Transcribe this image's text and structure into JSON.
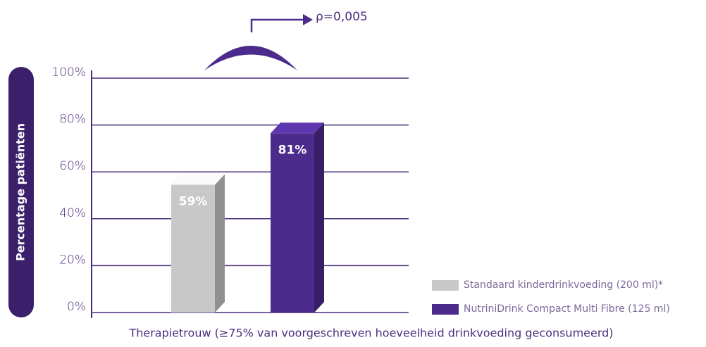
{
  "chart_data": {
    "type": "bar",
    "y_label": "Percentage patiënten",
    "x_label": "Therapietrouw (≥75% van voorgeschreven hoeveelheid drinkvoeding geconsumeerd)",
    "annotation": "ρ=0,005",
    "series": [
      {
        "name": "Standaard kinderdrinkvoeding (200 ml)*",
        "color": "#c8c8c8",
        "values": [
          59
        ],
        "value_labels": [
          "59%"
        ]
      },
      {
        "name": "NutriniDrink Compact Multi Fibre (125 ml)",
        "color": "#4b2b8c",
        "values": [
          81
        ],
        "value_labels": [
          "81%"
        ]
      }
    ],
    "ylim": [
      0,
      100
    ],
    "yticks": [
      {
        "value": 0,
        "label": "0%"
      },
      {
        "value": 20,
        "label": "20%"
      },
      {
        "value": 40,
        "label": "40%"
      },
      {
        "value": 60,
        "label": "60%"
      },
      {
        "value": 80,
        "label": "80%"
      },
      {
        "value": 100,
        "label": "100%"
      }
    ],
    "grid": true
  }
}
